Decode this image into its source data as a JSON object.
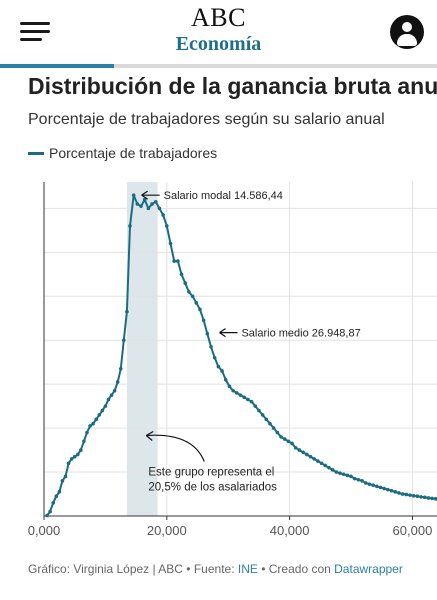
{
  "header": {
    "brand": "ABC",
    "section": "Economía",
    "progress": 0.26,
    "colors": {
      "section": "#1f6f8b",
      "progress": "#2e7fa8"
    }
  },
  "article": {
    "title": "Distribución de la ganancia bruta anu",
    "subtitle": "Porcentaje de trabajadores según su salario anual",
    "legend_label": "Porcentaje de trabajadores"
  },
  "chart_data": {
    "type": "line",
    "series": [
      {
        "name": "Porcentaje de trabajadores",
        "color": "#1b6c82",
        "x": [
          500,
          1000,
          1500,
          2000,
          2500,
          3000,
          3500,
          4000,
          4500,
          5000,
          5500,
          6000,
          6500,
          7000,
          7500,
          8000,
          8500,
          9000,
          9500,
          10000,
          10500,
          11000,
          11500,
          12000,
          12500,
          13000,
          13500,
          14000,
          14600,
          15200,
          15800,
          16400,
          17000,
          17600,
          18200,
          18800,
          19400,
          20000,
          20600,
          21200,
          21800,
          22400,
          23000,
          23600,
          24200,
          24800,
          25400,
          26000,
          26600,
          27200,
          27800,
          28400,
          29000,
          29600,
          30200,
          30800,
          31400,
          32000,
          32600,
          33200,
          33800,
          34400,
          35000,
          35600,
          36200,
          36800,
          37400,
          38000,
          38600,
          39200,
          39800,
          40400,
          41000,
          41600,
          42200,
          42800,
          43400,
          44000,
          44600,
          45200,
          45800,
          46400,
          47000,
          47600,
          48200,
          48800,
          49400,
          50000,
          50600,
          51200,
          51800,
          52400,
          53000,
          53600,
          54200,
          54800,
          55400,
          56000,
          56600,
          57200,
          57800,
          58400,
          59000,
          59600,
          60200,
          60800,
          61400,
          62000,
          62600,
          63200,
          63800
        ],
        "y": [
          0.02,
          0.2,
          0.6,
          0.9,
          1.1,
          1.6,
          1.8,
          2.4,
          2.6,
          2.7,
          2.8,
          3.0,
          3.4,
          3.8,
          4.1,
          4.2,
          4.4,
          4.6,
          4.8,
          5.0,
          5.3,
          5.5,
          5.7,
          6.1,
          6.7,
          8.0,
          9.3,
          13.2,
          14.6,
          14.2,
          14.1,
          14.4,
          14.0,
          14.2,
          14.3,
          14.0,
          13.7,
          13.2,
          12.4,
          11.6,
          11.6,
          11.0,
          10.6,
          10.2,
          10.0,
          9.7,
          9.4,
          8.9,
          8.3,
          7.7,
          7.2,
          6.8,
          6.6,
          6.2,
          5.9,
          5.7,
          5.6,
          5.5,
          5.4,
          5.3,
          5.2,
          5.0,
          4.8,
          4.6,
          4.4,
          4.2,
          4.0,
          3.8,
          3.6,
          3.5,
          3.4,
          3.3,
          3.1,
          3.0,
          2.9,
          2.8,
          2.7,
          2.6,
          2.5,
          2.4,
          2.3,
          2.2,
          2.1,
          2.0,
          1.95,
          1.9,
          1.85,
          1.8,
          1.7,
          1.65,
          1.6,
          1.5,
          1.45,
          1.4,
          1.35,
          1.3,
          1.25,
          1.2,
          1.15,
          1.1,
          1.05,
          1.0,
          0.98,
          0.95,
          0.92,
          0.9,
          0.87,
          0.85,
          0.82,
          0.8,
          0.78
        ]
      }
    ],
    "x_ticks": [
      "0,000",
      "20,000",
      "40,000",
      "60,000"
    ],
    "x_tick_values": [
      0,
      20000,
      40000,
      60000
    ],
    "xlim": [
      0,
      64000
    ],
    "ylim": [
      0,
      15.2
    ],
    "y_grid": [
      0,
      2,
      4,
      6,
      8,
      10,
      12,
      14
    ],
    "grid": true,
    "highlight_band": {
      "x_start": 13500,
      "x_end": 18500,
      "color": "#dde6eb"
    },
    "annotations": [
      {
        "text": "Salario modal 14.586,44",
        "x": 14600,
        "y": 14.6
      },
      {
        "text": "Salario medio 26.948,87",
        "x": 26949,
        "y": 8.8
      },
      {
        "text_lines": [
          "Este grupo representa el",
          "20,5% de los asalariados"
        ],
        "x": 16000,
        "y": 3.8
      }
    ]
  },
  "footer": {
    "prefix": "Gráfico: Virginia López | ABC • Fuente: ",
    "source_link": "INE",
    "middle": " • Creado con ",
    "tool_link": "Datawrapper"
  }
}
